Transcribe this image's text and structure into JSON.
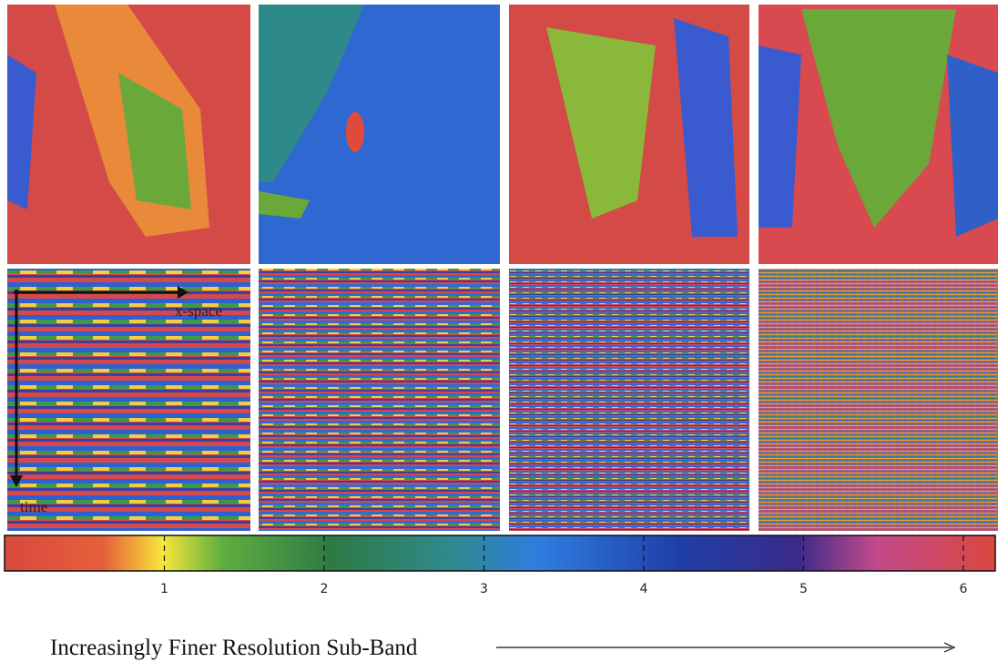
{
  "panels": {
    "x_label": "x-space",
    "t_label": "time"
  },
  "colorbar": {
    "lim": [
      0,
      6.2
    ],
    "ticks": [
      1,
      2,
      3,
      4,
      5,
      6
    ]
  },
  "caption": "Increasingly Finer Resolution Sub-Band"
}
